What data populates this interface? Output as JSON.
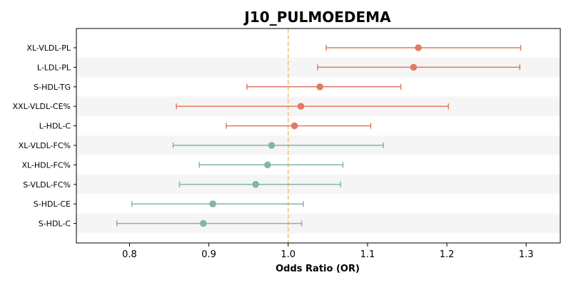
{
  "chart_data": {
    "type": "forest",
    "title": "J10_PULMOEDEMA",
    "xlabel": "Odds Ratio (OR)",
    "ylabel": "",
    "xlim": [
      0.733,
      1.343
    ],
    "xticks": [
      0.8,
      0.9,
      1.0,
      1.1,
      1.2,
      1.3
    ],
    "xtick_labels": [
      "0.8",
      "0.9",
      "1.0",
      "1.1",
      "1.2",
      "1.3"
    ],
    "reference_line": 1.0,
    "grid": false,
    "row_banding": true,
    "colors": {
      "above_one": "#e07b62",
      "below_one": "#82b69e",
      "reference": "#f2c27a",
      "band": "#f5f5f5"
    },
    "rows": [
      {
        "label": "XL-VLDL-PL",
        "or": 1.164,
        "ci_low": 1.048,
        "ci_high": 1.293
      },
      {
        "label": "L-LDL-PL",
        "or": 1.158,
        "ci_low": 1.037,
        "ci_high": 1.292
      },
      {
        "label": "S-HDL-TG",
        "or": 1.04,
        "ci_low": 0.948,
        "ci_high": 1.142
      },
      {
        "label": "XXL-VLDL-CE%",
        "or": 1.016,
        "ci_low": 0.859,
        "ci_high": 1.202
      },
      {
        "label": "L-HDL-C",
        "or": 1.008,
        "ci_low": 0.922,
        "ci_high": 1.104
      },
      {
        "label": "XL-VLDL-FC%",
        "or": 0.979,
        "ci_low": 0.855,
        "ci_high": 1.12
      },
      {
        "label": "XL-HDL-FC%",
        "or": 0.974,
        "ci_low": 0.888,
        "ci_high": 1.069
      },
      {
        "label": "S-VLDL-FC%",
        "or": 0.959,
        "ci_low": 0.863,
        "ci_high": 1.066
      },
      {
        "label": "S-HDL-CE",
        "or": 0.905,
        "ci_low": 0.803,
        "ci_high": 1.019
      },
      {
        "label": "S-HDL-C",
        "or": 0.893,
        "ci_low": 0.784,
        "ci_high": 1.017
      }
    ]
  }
}
